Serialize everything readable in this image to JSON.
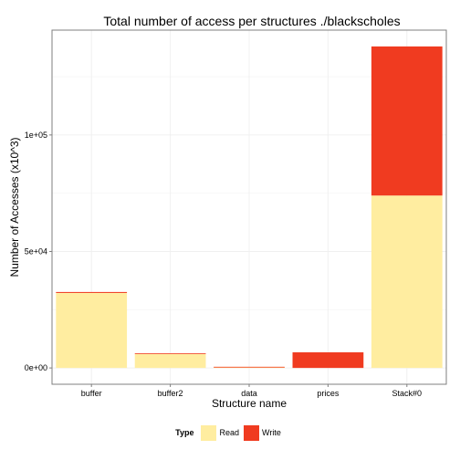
{
  "chart_data": {
    "type": "bar",
    "stacked": true,
    "title": "Total number of access per structures ./blackscholes",
    "xlabel": "Structure name",
    "ylabel": "Number of Accesses (x10^3)",
    "categories": [
      "buffer",
      "buffer2",
      "data",
      "prices",
      "Stack#0"
    ],
    "series": [
      {
        "name": "Read",
        "color": "#ffeda0",
        "values": [
          32200,
          6000,
          300,
          0,
          74000
        ]
      },
      {
        "name": "Write",
        "color": "#f03b20",
        "values": [
          400,
          300,
          200,
          6700,
          64000
        ]
      }
    ],
    "ylim": [
      -7000,
      145000
    ],
    "yticks": [
      0,
      50000,
      100000
    ],
    "ytick_labels": [
      "0e+00",
      "5e+04",
      "1e+05"
    ],
    "grid": true,
    "legend": {
      "title": "Type",
      "position": "bottom"
    },
    "colors": {
      "panel_border": "#7f7f7f",
      "grid": "#f0f0f0"
    }
  }
}
